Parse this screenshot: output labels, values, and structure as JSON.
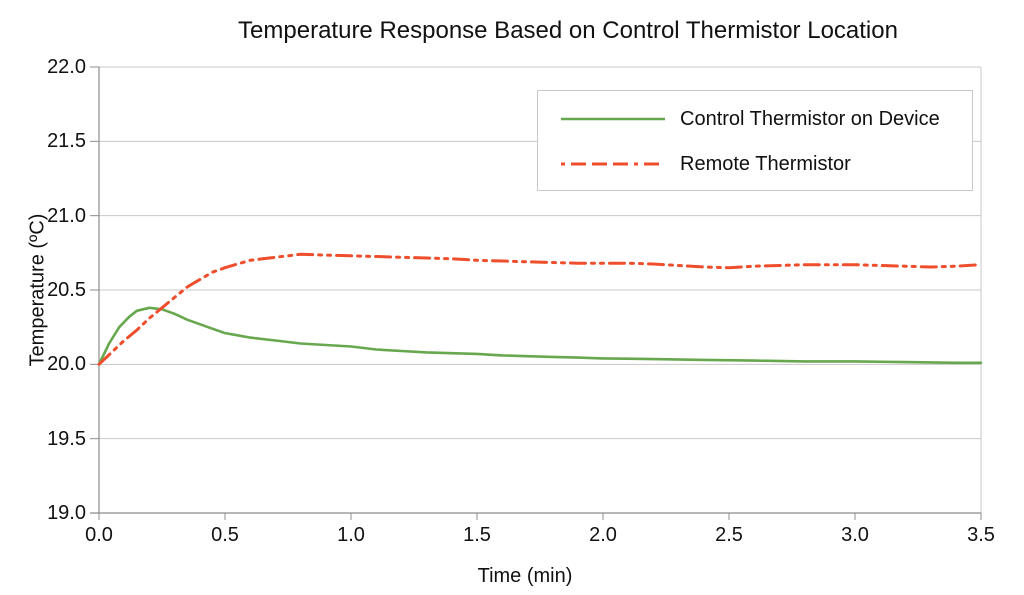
{
  "title": "Temperature Response Based on Control Thermistor Location",
  "colors": {
    "control_series": "#67a84e",
    "remote_series": "#ef4e2c",
    "gridline": "#c8c8c8",
    "axis_line": "#8c8c8c",
    "legend_border": "#c9c9c9",
    "text": "#111111"
  },
  "legend": {
    "items": [
      {
        "label": "Control Thermistor on Device",
        "style": "solid"
      },
      {
        "label": "Remote Thermistor",
        "style": "dash-dot-dot"
      }
    ]
  },
  "chart_data": {
    "type": "line",
    "title": "Temperature Response Based on Control Thermistor Location",
    "xlabel": "Time (min)",
    "ylabel": "Temperature (ºC)",
    "xlim": [
      0.0,
      3.5
    ],
    "ylim": [
      19.0,
      22.0
    ],
    "xticks": [
      "0.0",
      "0.5",
      "1.0",
      "1.5",
      "2.0",
      "2.5",
      "3.0",
      "3.5"
    ],
    "yticks": [
      "19.0",
      "19.5",
      "20.0",
      "20.5",
      "21.0",
      "21.5",
      "22.0"
    ],
    "grid": "horizontal-only",
    "legend_position": "top-right-inside",
    "series": [
      {
        "name": "Control Thermistor on Device",
        "color": "#67a84e",
        "style": "solid",
        "points": [
          [
            0.0,
            20.0
          ],
          [
            0.04,
            20.14
          ],
          [
            0.08,
            20.25
          ],
          [
            0.12,
            20.32
          ],
          [
            0.15,
            20.36
          ],
          [
            0.2,
            20.38
          ],
          [
            0.25,
            20.37
          ],
          [
            0.3,
            20.34
          ],
          [
            0.35,
            20.3
          ],
          [
            0.4,
            20.27
          ],
          [
            0.45,
            20.24
          ],
          [
            0.5,
            20.21
          ],
          [
            0.55,
            20.195
          ],
          [
            0.6,
            20.18
          ],
          [
            0.7,
            20.16
          ],
          [
            0.8,
            20.14
          ],
          [
            0.9,
            20.13
          ],
          [
            1.0,
            20.12
          ],
          [
            1.1,
            20.1
          ],
          [
            1.2,
            20.09
          ],
          [
            1.3,
            20.08
          ],
          [
            1.4,
            20.075
          ],
          [
            1.5,
            20.07
          ],
          [
            1.6,
            20.06
          ],
          [
            1.7,
            20.055
          ],
          [
            1.8,
            20.05
          ],
          [
            1.9,
            20.045
          ],
          [
            2.0,
            20.04
          ],
          [
            2.2,
            20.035
          ],
          [
            2.4,
            20.03
          ],
          [
            2.6,
            20.025
          ],
          [
            2.8,
            20.02
          ],
          [
            3.0,
            20.02
          ],
          [
            3.2,
            20.015
          ],
          [
            3.4,
            20.01
          ],
          [
            3.5,
            20.01
          ]
        ]
      },
      {
        "name": "Remote Thermistor",
        "color": "#ef4e2c",
        "style": "dash-dot-dot",
        "points": [
          [
            0.0,
            20.0
          ],
          [
            0.05,
            20.08
          ],
          [
            0.1,
            20.16
          ],
          [
            0.15,
            20.23
          ],
          [
            0.2,
            20.31
          ],
          [
            0.25,
            20.38
          ],
          [
            0.3,
            20.45
          ],
          [
            0.35,
            20.52
          ],
          [
            0.4,
            20.57
          ],
          [
            0.45,
            20.62
          ],
          [
            0.5,
            20.65
          ],
          [
            0.55,
            20.675
          ],
          [
            0.6,
            20.7
          ],
          [
            0.65,
            20.71
          ],
          [
            0.7,
            20.72
          ],
          [
            0.75,
            20.73
          ],
          [
            0.8,
            20.74
          ],
          [
            0.9,
            20.735
          ],
          [
            1.0,
            20.73
          ],
          [
            1.1,
            20.725
          ],
          [
            1.2,
            20.72
          ],
          [
            1.3,
            20.715
          ],
          [
            1.4,
            20.71
          ],
          [
            1.5,
            20.7
          ],
          [
            1.6,
            20.695
          ],
          [
            1.7,
            20.69
          ],
          [
            1.8,
            20.685
          ],
          [
            1.9,
            20.68
          ],
          [
            2.0,
            20.68
          ],
          [
            2.1,
            20.68
          ],
          [
            2.2,
            20.675
          ],
          [
            2.3,
            20.665
          ],
          [
            2.4,
            20.655
          ],
          [
            2.5,
            20.65
          ],
          [
            2.6,
            20.66
          ],
          [
            2.7,
            20.665
          ],
          [
            2.8,
            20.67
          ],
          [
            2.9,
            20.67
          ],
          [
            3.0,
            20.67
          ],
          [
            3.1,
            20.665
          ],
          [
            3.2,
            20.66
          ],
          [
            3.3,
            20.655
          ],
          [
            3.4,
            20.66
          ],
          [
            3.5,
            20.67
          ]
        ]
      }
    ]
  }
}
